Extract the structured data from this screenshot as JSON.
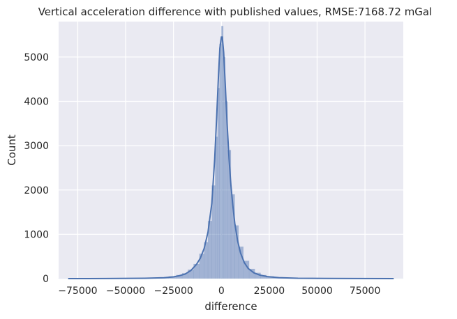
{
  "chart_data": {
    "type": "histogram",
    "title": "Vertical acceleration difference with published values, RMSE:7168.72 mGal",
    "xlabel": "difference",
    "ylabel": "Count",
    "xlim": [
      -85000,
      95000
    ],
    "ylim": [
      0,
      5800
    ],
    "xticks": [
      -75000,
      -50000,
      -25000,
      0,
      25000,
      50000,
      75000
    ],
    "xtick_labels": [
      "−75000",
      "−50000",
      "−25000",
      "0",
      "25000",
      "50000",
      "75000"
    ],
    "yticks": [
      0,
      1000,
      2000,
      3000,
      4000,
      5000
    ],
    "ytick_labels": [
      "0",
      "1000",
      "2000",
      "3000",
      "4000",
      "5000"
    ],
    "grid": true,
    "kde": true,
    "bar_color": "#4c72b0",
    "bar_alpha": 0.45,
    "line_color": "#4c72b0",
    "background": "#eaeaf2",
    "histogram": {
      "bins": [
        {
          "x": -80000,
          "count": 2
        },
        {
          "x": -70000,
          "count": 3
        },
        {
          "x": -60000,
          "count": 4
        },
        {
          "x": -50000,
          "count": 6
        },
        {
          "x": -45000,
          "count": 8
        },
        {
          "x": -40000,
          "count": 12
        },
        {
          "x": -35000,
          "count": 18
        },
        {
          "x": -30000,
          "count": 30
        },
        {
          "x": -25000,
          "count": 50
        },
        {
          "x": -22000,
          "count": 80
        },
        {
          "x": -19000,
          "count": 120
        },
        {
          "x": -16000,
          "count": 200
        },
        {
          "x": -13000,
          "count": 330
        },
        {
          "x": -10000,
          "count": 560
        },
        {
          "x": -8000,
          "count": 820
        },
        {
          "x": -6000,
          "count": 1300
        },
        {
          "x": -4000,
          "count": 2100
        },
        {
          "x": -2500,
          "count": 3200
        },
        {
          "x": -1500,
          "count": 4300
        },
        {
          "x": -500,
          "count": 5300
        },
        {
          "x": 500,
          "count": 5700
        },
        {
          "x": 1500,
          "count": 5000
        },
        {
          "x": 2500,
          "count": 4000
        },
        {
          "x": 4000,
          "count": 2900
        },
        {
          "x": 6000,
          "count": 1900
        },
        {
          "x": 8000,
          "count": 1200
        },
        {
          "x": 10000,
          "count": 720
        },
        {
          "x": 13000,
          "count": 400
        },
        {
          "x": 16000,
          "count": 220
        },
        {
          "x": 19000,
          "count": 130
        },
        {
          "x": 22000,
          "count": 80
        },
        {
          "x": 25000,
          "count": 50
        },
        {
          "x": 30000,
          "count": 30
        },
        {
          "x": 35000,
          "count": 18
        },
        {
          "x": 40000,
          "count": 10
        },
        {
          "x": 50000,
          "count": 6
        },
        {
          "x": 60000,
          "count": 4
        },
        {
          "x": 70000,
          "count": 3
        },
        {
          "x": 80000,
          "count": 2
        },
        {
          "x": 90000,
          "count": 1
        }
      ]
    },
    "kde_points": [
      [
        -80000,
        0
      ],
      [
        -60000,
        2
      ],
      [
        -40000,
        8
      ],
      [
        -30000,
        20
      ],
      [
        -25000,
        40
      ],
      [
        -22000,
        65
      ],
      [
        -19000,
        100
      ],
      [
        -16000,
        180
      ],
      [
        -13000,
        320
      ],
      [
        -11000,
        460
      ],
      [
        -9000,
        680
      ],
      [
        -7000,
        1050
      ],
      [
        -5000,
        1700
      ],
      [
        -3500,
        2700
      ],
      [
        -2500,
        3600
      ],
      [
        -1500,
        4600
      ],
      [
        -800,
        5200
      ],
      [
        0,
        5450
      ],
      [
        500,
        5450
      ],
      [
        1200,
        5100
      ],
      [
        2000,
        4400
      ],
      [
        3000,
        3500
      ],
      [
        4000,
        2700
      ],
      [
        5000,
        2100
      ],
      [
        6000,
        1650
      ],
      [
        7000,
        1250
      ],
      [
        8500,
        850
      ],
      [
        10000,
        580
      ],
      [
        12000,
        360
      ],
      [
        14000,
        230
      ],
      [
        17000,
        130
      ],
      [
        20000,
        80
      ],
      [
        24000,
        45
      ],
      [
        30000,
        22
      ],
      [
        40000,
        8
      ],
      [
        55000,
        3
      ],
      [
        70000,
        1
      ],
      [
        90000,
        0
      ]
    ]
  }
}
